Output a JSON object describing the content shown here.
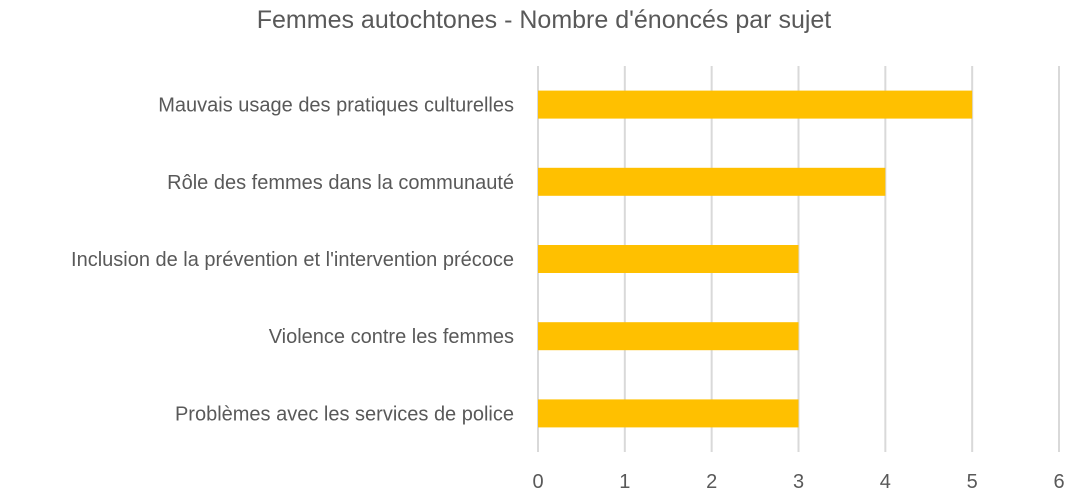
{
  "chart_data": {
    "type": "bar",
    "orientation": "horizontal",
    "title": "Femmes autochtones - Nombre d'énoncés par sujet",
    "categories": [
      "Mauvais usage des pratiques culturelles",
      "Rôle des femmes dans la communauté",
      "Inclusion de la prévention et l'intervention précoce",
      "Violence contre les femmes",
      "Problèmes avec les services de police"
    ],
    "values": [
      5,
      4,
      3,
      3,
      3
    ],
    "xlim": [
      0,
      6
    ],
    "xticks": [
      "0",
      "1",
      "2",
      "3",
      "4",
      "5",
      "6"
    ],
    "grid": "vertical",
    "legend": "none",
    "bar_color": "#ffc000",
    "grid_color": "#d9d9d9",
    "text_color": "#595959"
  }
}
